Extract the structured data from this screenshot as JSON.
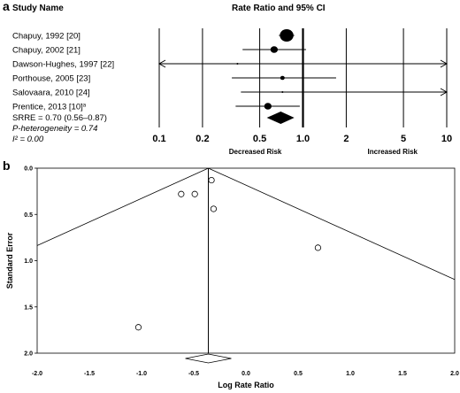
{
  "chart_data": [
    {
      "panel": "a",
      "type": "forest",
      "header_study": "Study Name",
      "header_effect": "Rate Ratio and 95% CI",
      "x_scale": "log",
      "xlim": [
        0.1,
        10
      ],
      "x_ticks": [
        "0.1",
        "0.2",
        "0.5",
        "1.0",
        "2",
        "5",
        "10"
      ],
      "x_tick_values": [
        0.1,
        0.2,
        0.5,
        1.0,
        2,
        5,
        10
      ],
      "left_label": "Decreased Risk",
      "right_label": "Increased Risk",
      "studies": [
        {
          "name": "Chapuy, 1992 [20]",
          "rr": 0.77,
          "lo": 0.68,
          "hi": 0.87,
          "weight": "large"
        },
        {
          "name": "Chapuy, 2002 [21]",
          "rr": 0.63,
          "lo": 0.38,
          "hi": 1.05,
          "weight": "medium"
        },
        {
          "name": "Dawson-Hughes, 1997 [22]",
          "rr": 0.35,
          "lo": 0.01,
          "hi": 10.0,
          "weight": "tiny",
          "arrows": true
        },
        {
          "name": "Porthouse, 2005 [23]",
          "rr": 0.72,
          "lo": 0.32,
          "hi": 1.7,
          "weight": "small"
        },
        {
          "name": "Salovaara, 2010 [24]",
          "rr": 0.72,
          "lo": 0.37,
          "hi": 10.0,
          "weight": "tiny",
          "arrow_right": true
        },
        {
          "name": "Prentice, 2013 [10]",
          "superscript": "a",
          "rr": 0.57,
          "lo": 0.34,
          "hi": 0.95,
          "weight": "medium"
        }
      ],
      "summary": {
        "label": "SRRE = 0.70 (0.56–0.87)",
        "rr": 0.7,
        "lo": 0.56,
        "hi": 0.87
      },
      "heterogeneity_p": "P-heterogeneity = 0.74",
      "i_squared": "I² = 0.00"
    },
    {
      "panel": "b",
      "type": "funnel",
      "xlabel": "Log Rate Ratio",
      "ylabel": "Standard Error",
      "xlim": [
        -2.0,
        2.0
      ],
      "ylim": [
        0.0,
        2.0
      ],
      "y_inverted": true,
      "x_ticks": [
        "-2.0",
        "-1.5",
        "-1.0",
        "-0.5",
        "0.0",
        "0.5",
        "1.0",
        "1.5",
        "2.0"
      ],
      "x_tick_values": [
        -2.0,
        -1.5,
        -1.0,
        -0.5,
        0.0,
        0.5,
        1.0,
        1.5,
        2.0
      ],
      "y_ticks": [
        "0.0",
        "0.5",
        "1.0",
        "1.5",
        "2.0"
      ],
      "y_tick_values": [
        0.0,
        0.5,
        1.0,
        1.5,
        2.0
      ],
      "pooled_effect": -0.36,
      "summary_diamond": {
        "center": -0.36,
        "lo": -0.58,
        "hi": -0.14
      },
      "points": [
        {
          "x": -0.62,
          "y": 0.28
        },
        {
          "x": -0.49,
          "y": 0.28
        },
        {
          "x": -0.33,
          "y": 0.13
        },
        {
          "x": -0.31,
          "y": 0.44
        },
        {
          "x": 0.69,
          "y": 0.86
        },
        {
          "x": -1.03,
          "y": 1.72
        }
      ]
    }
  ]
}
